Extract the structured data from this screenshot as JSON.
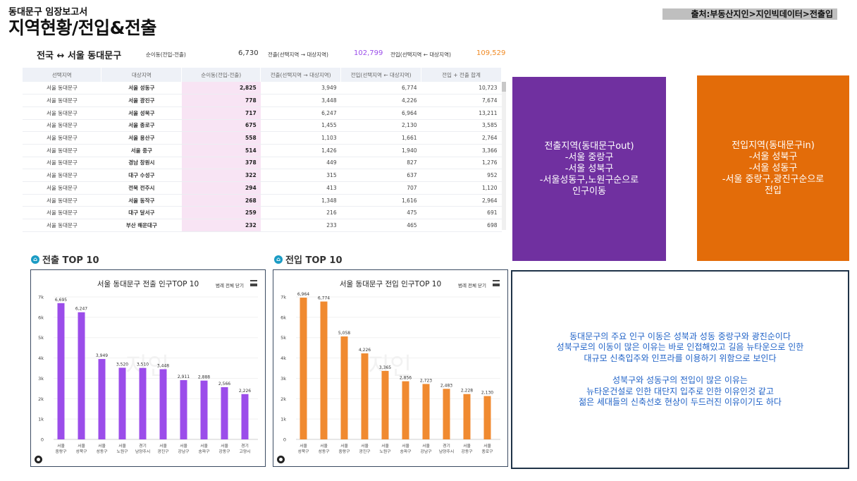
{
  "header": {
    "subtitle": "동대문구 임장보고서",
    "title": "지역현황/전입&전출",
    "source": "출처:부동산지인>지인빅데이터>전출입"
  },
  "summary": {
    "route": "전국 ↔ 서울 동대문구",
    "net_label": "순이동(전입-전출)",
    "net_value": "6,730",
    "out_label": "전출(선택지역 → 대상지역)",
    "out_value": "102,799",
    "in_label": "전입(선택지역 ← 대상지역)",
    "in_value": "109,529",
    "out_color": "#9b4dea",
    "in_color": "#f08a24"
  },
  "table": {
    "headers": [
      "선택지역",
      "대상지역",
      "순이동(전입-전출)",
      "전출(선택지역 → 대상지역)",
      "전입(선택지역 ← 대상지역)",
      "전입 + 전출 합계"
    ],
    "rows": [
      [
        "서울 동대문구",
        "서울 성동구",
        "2,825",
        "3,949",
        "6,774",
        "10,723"
      ],
      [
        "서울 동대문구",
        "서울 광진구",
        "778",
        "3,448",
        "4,226",
        "7,674"
      ],
      [
        "서울 동대문구",
        "서울 성북구",
        "717",
        "6,247",
        "6,964",
        "13,211"
      ],
      [
        "서울 동대문구",
        "서울 종로구",
        "675",
        "1,455",
        "2,130",
        "3,585"
      ],
      [
        "서울 동대문구",
        "서울 용산구",
        "558",
        "1,103",
        "1,661",
        "2,764"
      ],
      [
        "서울 동대문구",
        "서울 중구",
        "514",
        "1,426",
        "1,940",
        "3,366"
      ],
      [
        "서울 동대문구",
        "경남 창원시",
        "378",
        "449",
        "827",
        "1,276"
      ],
      [
        "서울 동대문구",
        "대구 수성구",
        "322",
        "315",
        "637",
        "952"
      ],
      [
        "서울 동대문구",
        "전북 전주시",
        "294",
        "413",
        "707",
        "1,120"
      ],
      [
        "서울 동대문구",
        "서울 동작구",
        "268",
        "1,348",
        "1,616",
        "2,964"
      ],
      [
        "서울 동대문구",
        "대구 달서구",
        "259",
        "216",
        "475",
        "691"
      ],
      [
        "서울 동대문구",
        "부산 해운대구",
        "232",
        "233",
        "465",
        "698"
      ]
    ]
  },
  "purple_box": {
    "lines": [
      "전출지역(동대문구out)",
      "-서울 중랑구",
      "-서울 성북구",
      "-서울성동구,노원구순으로",
      "인구이동"
    ]
  },
  "orange_box": {
    "lines": [
      "전입지역(동대문구in)",
      "-서울 성북구",
      "-서울 성동구",
      "-서울 중랑구,광진구순으로",
      "전입"
    ]
  },
  "analysis": {
    "para1": [
      "동대문구의 주요 인구 이동은 성북과 성동 중랑구와 광진순이다",
      "성북구로의 이동이 많은 이유는 바로 인접해있고 길음 뉴타운으로 인한",
      "대규모 신축입주와 인프라를 이용하기 위함으로 보인다"
    ],
    "para2": [
      "성북구와 성동구의 전입이 많은 이유는",
      "뉴타운건설로 인한 대단지 입주로 인한 이유인것 같고",
      "젊은 세대들의 신축선호 현상이 두드러진 이유이기도 하다"
    ]
  },
  "sections": {
    "out_title": "전출 TOP 10",
    "in_title": "전입 TOP 10"
  },
  "legend_label": "범례 전체 닫기",
  "chart_data": [
    {
      "type": "bar",
      "title": "서울 동대문구 전출 인구TOP 10",
      "color": "#9b4dea",
      "categories": [
        "서울 중랑구",
        "서울 성북구",
        "서울 성동구",
        "서울 노원구",
        "경기 남양주시",
        "서울 광진구",
        "서울 강남구",
        "서울 송파구",
        "서울 강동구",
        "경기 고양시"
      ],
      "values": [
        6695,
        6247,
        3949,
        3520,
        3510,
        3448,
        2911,
        2888,
        2566,
        2226
      ],
      "value_labels": [
        "6,695",
        "6,247",
        "3,949",
        "3,520",
        "3,510",
        "3,448",
        "2,911",
        "2,888",
        "2,566",
        "2,226"
      ],
      "yticks": [
        "0",
        "1k",
        "2k",
        "3k",
        "4k",
        "5k",
        "6k",
        "7k"
      ],
      "ylim": [
        0,
        7000
      ],
      "watermark": "지인"
    },
    {
      "type": "bar",
      "title": "서울 동대문구 전입 인구TOP 10",
      "color": "#f08a30",
      "categories": [
        "서울 성북구",
        "서울 성동구",
        "서울 중랑구",
        "서울 광진구",
        "서울 노원구",
        "서울 송파구",
        "서울 강남구",
        "경기 남양주시",
        "서울 강동구",
        "서울 종로구"
      ],
      "values": [
        6964,
        6774,
        5058,
        4226,
        3365,
        2856,
        2723,
        2483,
        2228,
        2130
      ],
      "value_labels": [
        "6,964",
        "6,774",
        "5,058",
        "4,226",
        "3,365",
        "2,856",
        "2,723",
        "2,483",
        "2,228",
        "2,130"
      ],
      "yticks": [
        "0",
        "1k",
        "2k",
        "3k",
        "4k",
        "5k",
        "6k",
        "7k"
      ],
      "ylim": [
        0,
        7000
      ],
      "watermark": "지인"
    }
  ]
}
